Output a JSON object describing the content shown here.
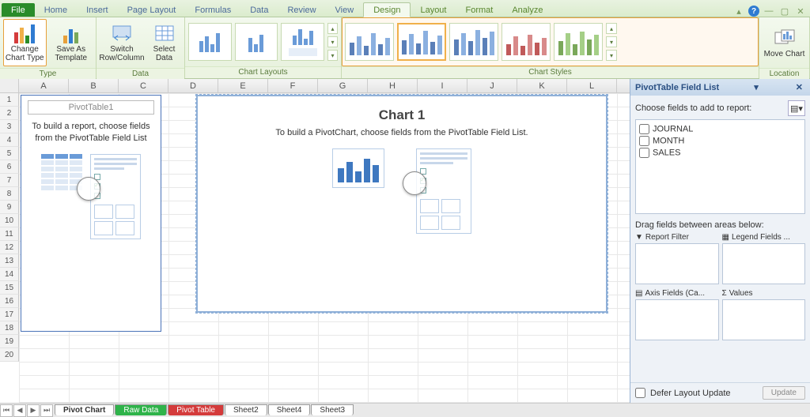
{
  "tabs": {
    "file": "File",
    "home": "Home",
    "insert": "Insert",
    "pageLayout": "Page Layout",
    "formulas": "Formulas",
    "data": "Data",
    "review": "Review",
    "view": "View",
    "design": "Design",
    "layout": "Layout",
    "format": "Format",
    "analyze": "Analyze"
  },
  "ribbon": {
    "type": {
      "label": "Type",
      "changeChartType": "Change Chart Type",
      "saveTemplate": "Save As Template"
    },
    "data": {
      "label": "Data",
      "switch": "Switch Row/Column",
      "select": "Select Data"
    },
    "chartLayouts": "Chart Layouts",
    "chartStyles": "Chart Styles",
    "location": {
      "label": "Location",
      "move": "Move Chart"
    }
  },
  "styleThumbs": {
    "heights": [
      [
        16,
        24,
        12,
        28,
        14,
        22
      ],
      [
        18,
        26,
        14,
        30,
        16,
        24
      ],
      [
        20,
        28,
        18,
        32,
        22,
        30
      ],
      [
        14,
        24,
        12,
        26,
        16,
        22
      ],
      [
        18,
        28,
        14,
        30,
        20,
        26
      ]
    ],
    "selectedIndex": 1,
    "colorClasses": [
      "c2",
      "c2",
      "c2",
      "c3",
      "c4"
    ]
  },
  "columns": [
    "A",
    "B",
    "C",
    "D",
    "E",
    "F",
    "G",
    "H",
    "I",
    "J",
    "K",
    "L"
  ],
  "rowCount": 20,
  "pivotTable": {
    "title": "PivotTable1",
    "msg": "To build a report, choose fields from the PivotTable Field List"
  },
  "chart": {
    "title": "Chart 1",
    "msg": "To build a PivotChart, choose fields from the PivotTable Field List.",
    "miniBars": [
      18,
      26,
      14,
      30,
      22
    ]
  },
  "fieldList": {
    "title": "PivotTable Field List",
    "choose": "Choose fields to add to report:",
    "fields": [
      "JOURNAL",
      "MONTH",
      "SALES"
    ],
    "drag": "Drag fields between areas below:",
    "areas": {
      "filter": "Report Filter",
      "legend": "Legend Fields ...",
      "axis": "Axis Fields (Ca...",
      "values": "Values"
    },
    "defer": "Defer Layout Update",
    "update": "Update"
  },
  "sheetTabs": {
    "pivotChart": "Pivot Chart",
    "rawData": "Raw Data",
    "pivotTable": "Pivot Table",
    "s2": "Sheet2",
    "s4": "Sheet4",
    "s3": "Sheet3"
  },
  "colors": {
    "accent": "#2a8c2a",
    "ribbonBorder": "#b3c99f",
    "chartBorder": "#8fb0d8"
  }
}
